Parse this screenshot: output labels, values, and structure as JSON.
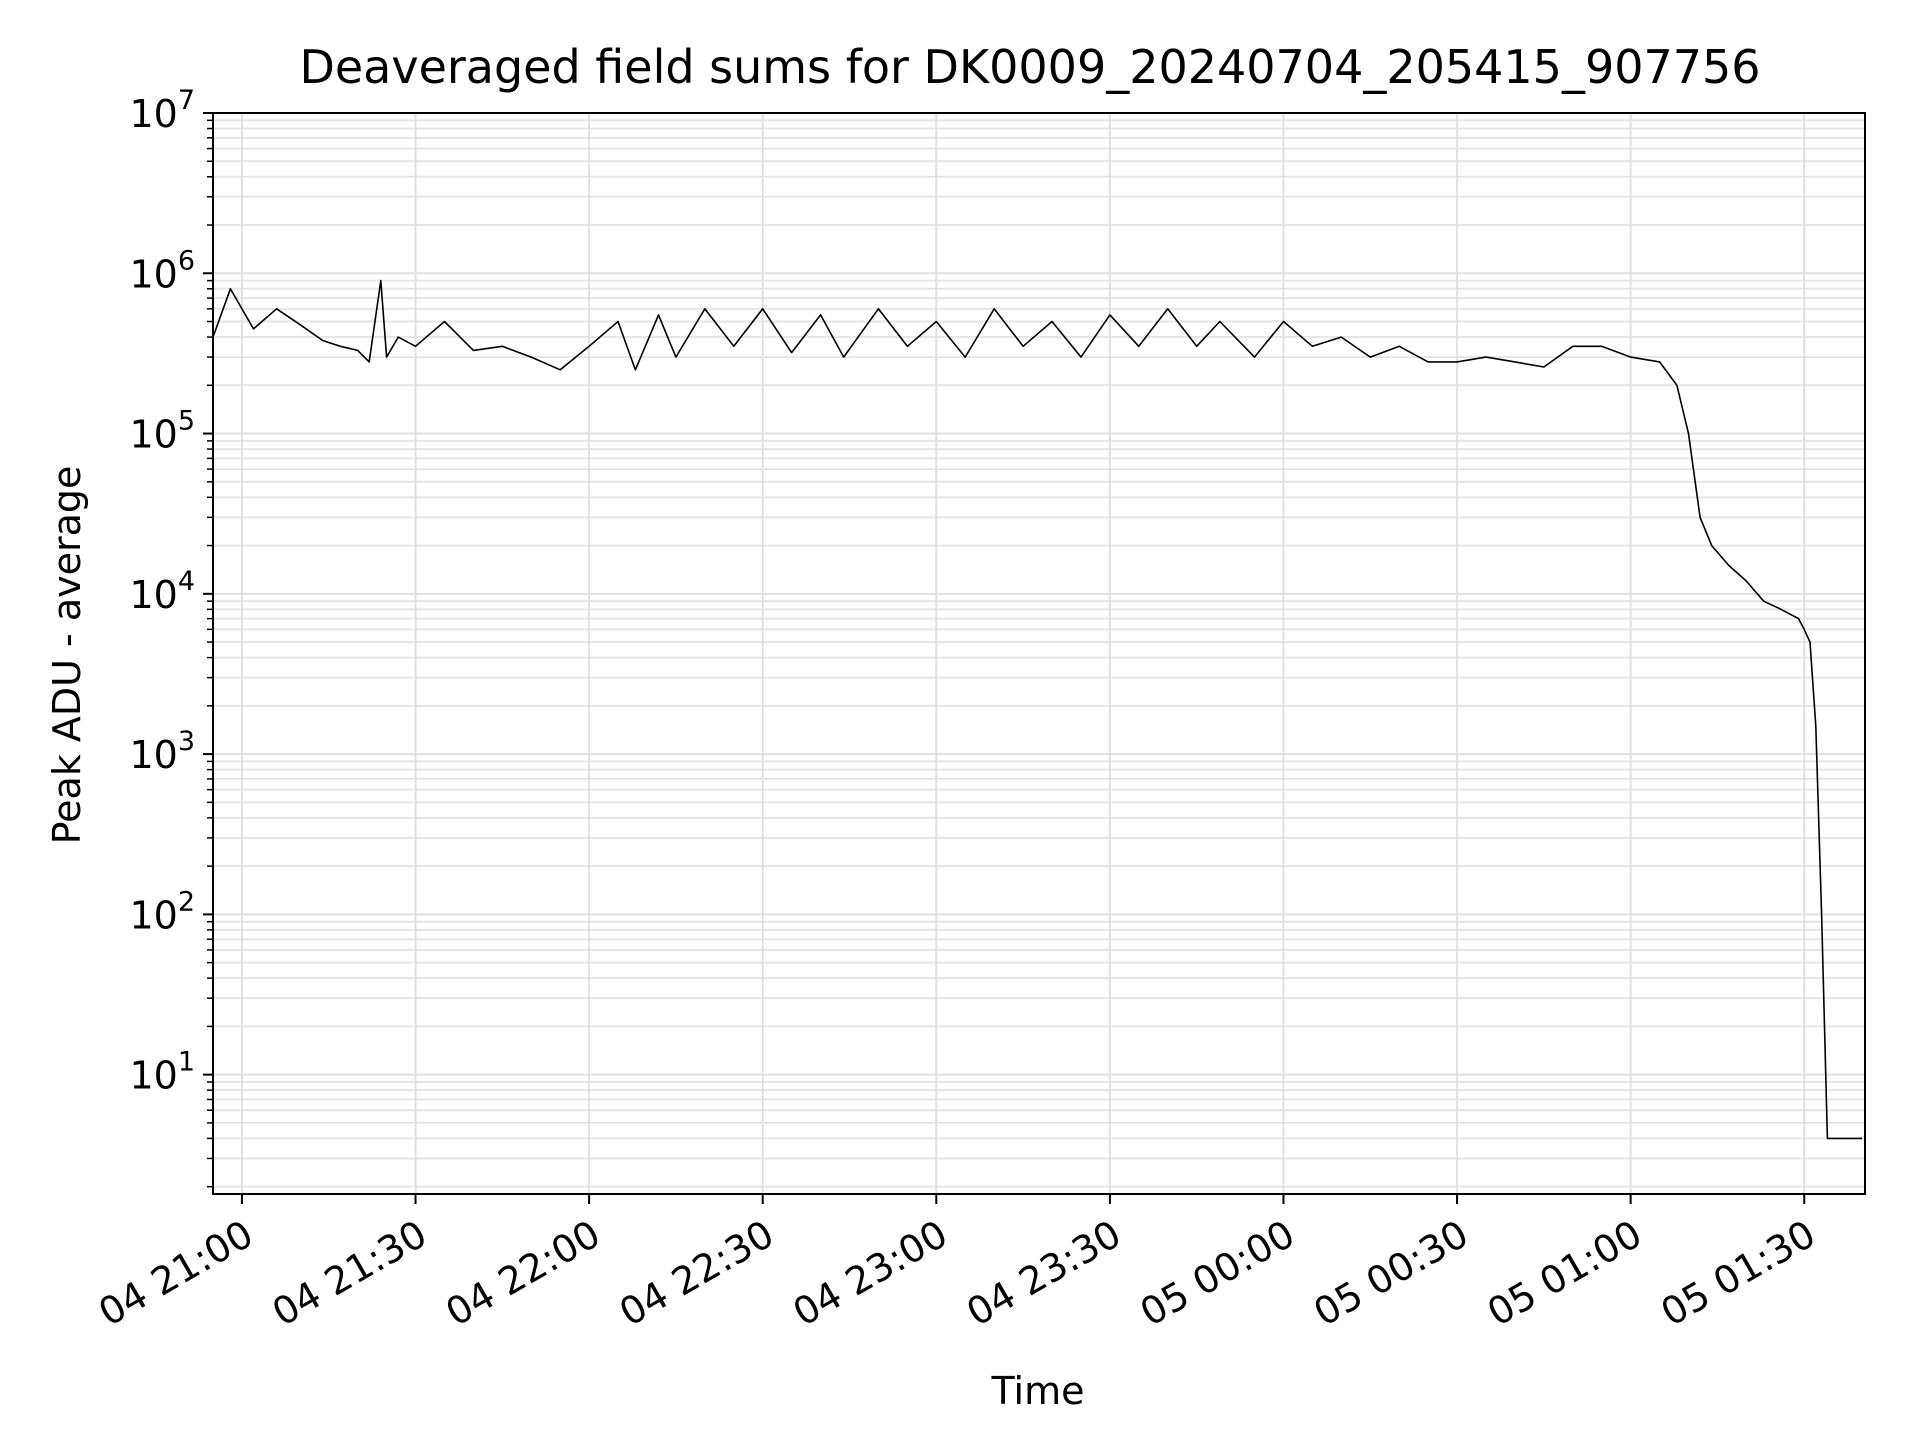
{
  "chart_data": {
    "type": "line",
    "title": "Deaveraged field sums for DK0009_20240704_205415_907756",
    "xlabel": "Time",
    "ylabel": "Peak ADU - average",
    "yscale": "log",
    "xlim": [
      "2024-07-04 20:55:00",
      "2024-07-05 01:40:30"
    ],
    "ylim": [
      1.8,
      10000000
    ],
    "x_ticks": [
      {
        "t": "2024-07-04 21:00",
        "label": "04 21:00"
      },
      {
        "t": "2024-07-04 21:30",
        "label": "04 21:30"
      },
      {
        "t": "2024-07-04 22:00",
        "label": "04 22:00"
      },
      {
        "t": "2024-07-04 22:30",
        "label": "04 22:30"
      },
      {
        "t": "2024-07-04 23:00",
        "label": "04 23:00"
      },
      {
        "t": "2024-07-04 23:30",
        "label": "04 23:30"
      },
      {
        "t": "2024-07-05 00:00",
        "label": "05 00:00"
      },
      {
        "t": "2024-07-05 00:30",
        "label": "05 00:30"
      },
      {
        "t": "2024-07-05 01:00",
        "label": "05 01:00"
      },
      {
        "t": "2024-07-05 01:30",
        "label": "05 01:30"
      }
    ],
    "y_ticks": [
      {
        "value": 10,
        "base": "10",
        "exp": "1"
      },
      {
        "value": 100,
        "base": "10",
        "exp": "2"
      },
      {
        "value": 1000,
        "base": "10",
        "exp": "3"
      },
      {
        "value": 10000,
        "base": "10",
        "exp": "4"
      },
      {
        "value": 100000,
        "base": "10",
        "exp": "5"
      },
      {
        "value": 1000000,
        "base": "10",
        "exp": "6"
      },
      {
        "value": 10000000,
        "base": "10",
        "exp": "7"
      }
    ],
    "grid": true,
    "legend": "none",
    "series": [
      {
        "color": "#000000",
        "x": [
          "2024-07-04 20:55",
          "2024-07-04 20:58",
          "2024-07-04 21:02",
          "2024-07-04 21:06",
          "2024-07-04 21:10",
          "2024-07-04 21:14",
          "2024-07-04 21:17",
          "2024-07-04 21:20",
          "2024-07-04 21:22",
          "2024-07-04 21:24",
          "2024-07-04 21:25",
          "2024-07-04 21:27",
          "2024-07-04 21:30",
          "2024-07-04 21:35",
          "2024-07-04 21:40",
          "2024-07-04 21:45",
          "2024-07-04 21:50",
          "2024-07-04 21:55",
          "2024-07-04 22:00",
          "2024-07-04 22:05",
          "2024-07-04 22:08",
          "2024-07-04 22:12",
          "2024-07-04 22:15",
          "2024-07-04 22:20",
          "2024-07-04 22:25",
          "2024-07-04 22:30",
          "2024-07-04 22:35",
          "2024-07-04 22:40",
          "2024-07-04 22:44",
          "2024-07-04 22:50",
          "2024-07-04 22:55",
          "2024-07-04 23:00",
          "2024-07-04 23:05",
          "2024-07-04 23:10",
          "2024-07-04 23:15",
          "2024-07-04 23:20",
          "2024-07-04 23:25",
          "2024-07-04 23:30",
          "2024-07-04 23:35",
          "2024-07-04 23:40",
          "2024-07-04 23:45",
          "2024-07-04 23:49",
          "2024-07-04 23:55",
          "2024-07-05 00:00",
          "2024-07-05 00:05",
          "2024-07-05 00:10",
          "2024-07-05 00:15",
          "2024-07-05 00:20",
          "2024-07-05 00:25",
          "2024-07-05 00:30",
          "2024-07-05 00:35",
          "2024-07-05 00:40",
          "2024-07-05 00:45",
          "2024-07-05 00:50",
          "2024-07-05 00:55",
          "2024-07-05 01:00",
          "2024-07-05 01:05",
          "2024-07-05 01:08",
          "2024-07-05 01:10",
          "2024-07-05 01:12",
          "2024-07-05 01:14",
          "2024-07-05 01:17",
          "2024-07-05 01:20",
          "2024-07-05 01:23",
          "2024-07-05 01:26",
          "2024-07-05 01:29",
          "2024-07-05 01:30",
          "2024-07-05 01:31",
          "2024-07-05 01:32",
          "2024-07-05 01:33",
          "2024-07-05 01:34",
          "2024-07-05 01:35",
          "2024-07-05 01:40"
        ],
        "y": [
          400000,
          800000,
          450000,
          600000,
          480000,
          380000,
          350000,
          330000,
          280000,
          900000,
          300000,
          400000,
          350000,
          500000,
          330000,
          350000,
          300000,
          250000,
          350000,
          500000,
          250000,
          550000,
          300000,
          600000,
          350000,
          600000,
          320000,
          550000,
          300000,
          600000,
          350000,
          500000,
          300000,
          600000,
          350000,
          500000,
          300000,
          550000,
          350000,
          600000,
          350000,
          500000,
          300000,
          500000,
          350000,
          400000,
          300000,
          350000,
          280000,
          280000,
          300000,
          280000,
          260000,
          350000,
          350000,
          300000,
          280000,
          200000,
          100000,
          30000,
          20000,
          15000,
          12000,
          9000,
          8000,
          7000,
          6000,
          5000,
          1500,
          100,
          4,
          4,
          4
        ]
      }
    ]
  }
}
